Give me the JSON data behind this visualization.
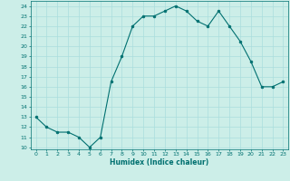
{
  "x": [
    0,
    1,
    2,
    3,
    4,
    5,
    6,
    7,
    8,
    9,
    10,
    11,
    12,
    13,
    14,
    15,
    16,
    17,
    18,
    19,
    20,
    21,
    22,
    23
  ],
  "y": [
    13,
    12,
    11.5,
    11.5,
    11,
    10,
    11,
    16.5,
    19,
    22,
    23,
    23,
    23.5,
    24,
    23.5,
    22.5,
    22,
    23.5,
    22,
    20.5,
    18.5,
    16,
    16,
    16.5
  ],
  "xlabel": "Humidex (Indice chaleur)",
  "xlim": [
    -0.5,
    23.5
  ],
  "ylim": [
    9.8,
    24.5
  ],
  "yticks": [
    10,
    11,
    12,
    13,
    14,
    15,
    16,
    17,
    18,
    19,
    20,
    21,
    22,
    23,
    24
  ],
  "xticks": [
    0,
    1,
    2,
    3,
    4,
    5,
    6,
    7,
    8,
    9,
    10,
    11,
    12,
    13,
    14,
    15,
    16,
    17,
    18,
    19,
    20,
    21,
    22,
    23
  ],
  "line_color": "#007070",
  "marker_color": "#007070",
  "bg_color": "#cceee8",
  "grid_color": "#aadddd",
  "axis_color": "#007070",
  "tick_color": "#007070",
  "xlabel_color": "#007070"
}
